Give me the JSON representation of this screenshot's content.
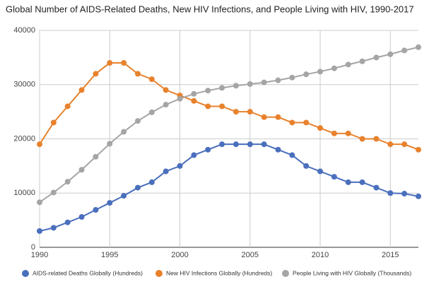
{
  "chart_data": {
    "type": "line",
    "title": "Global Number of AIDS-Related Deaths, New HIV Infections, and People Living with HIV, 1990-2017",
    "x": [
      1990,
      1991,
      1992,
      1993,
      1994,
      1995,
      1996,
      1997,
      1998,
      1999,
      2000,
      2001,
      2002,
      2003,
      2004,
      2005,
      2006,
      2007,
      2008,
      2009,
      2010,
      2011,
      2012,
      2013,
      2014,
      2015,
      2016,
      2017
    ],
    "xlim": [
      1990,
      2017
    ],
    "xticks": [
      1990,
      1995,
      2000,
      2005,
      2010,
      2015
    ],
    "ylim": [
      0,
      40000
    ],
    "yticks": [
      0,
      10000,
      20000,
      30000,
      40000
    ],
    "grid": true,
    "legend": "bottom",
    "series": [
      {
        "name": "AIDS-related Deaths Globally (Hundreds)",
        "color": "#4a6fbd",
        "values": [
          3000,
          3600,
          4600,
          5600,
          6900,
          8200,
          9500,
          11000,
          12000,
          14000,
          15000,
          17000,
          18000,
          19000,
          19000,
          19000,
          19000,
          18000,
          17000,
          15000,
          14000,
          13000,
          12000,
          12000,
          11000,
          10000,
          9900,
          9400
        ]
      },
      {
        "name": "New HIV Infections Globally (Hundreds)",
        "color": "#e8822d",
        "values": [
          19000,
          23000,
          26000,
          29000,
          32000,
          34000,
          34000,
          32000,
          31000,
          29000,
          28000,
          27000,
          26000,
          26000,
          25000,
          25000,
          24000,
          24000,
          23000,
          23000,
          22000,
          21000,
          21000,
          20000,
          20000,
          19000,
          19000,
          18000
        ]
      },
      {
        "name": "People Living with HIV Globally (Thousands)",
        "color": "#a5a5a5",
        "values": [
          8300,
          10100,
          12100,
          14300,
          16700,
          19100,
          21300,
          23300,
          24900,
          26300,
          27400,
          28300,
          28900,
          29400,
          29800,
          30100,
          30400,
          30800,
          31300,
          31900,
          32400,
          33000,
          33700,
          34300,
          35000,
          35600,
          36300,
          36900
        ]
      }
    ]
  }
}
